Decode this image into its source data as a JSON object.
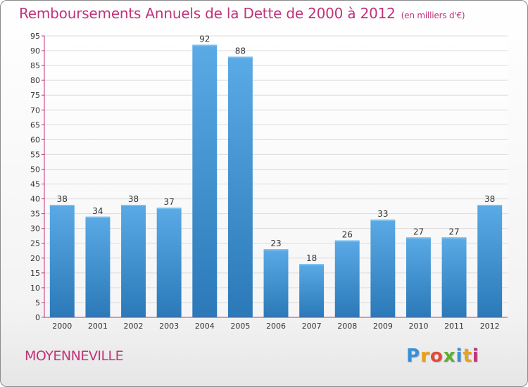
{
  "header": {
    "title": "Remboursements Annuels de la Dette de 2000 à 2012",
    "subtitle": "(en milliers d'€)"
  },
  "footer": {
    "city": "MOYENNEVILLE",
    "logo_text": "Proxiti"
  },
  "colors": {
    "title": "#c0337a",
    "bar_top": "#5aaae6",
    "bar_bottom": "#2b79b8",
    "axis": "#c0337a"
  },
  "chart_data": {
    "type": "bar",
    "title": "Remboursements Annuels de la Dette de 2000 à 2012",
    "subtitle": "(en milliers d'€)",
    "categories": [
      "2000",
      "2001",
      "2002",
      "2003",
      "2004",
      "2005",
      "2006",
      "2007",
      "2008",
      "2009",
      "2010",
      "2011",
      "2012"
    ],
    "values": [
      38,
      34,
      38,
      37,
      92,
      88,
      23,
      18,
      26,
      33,
      27,
      27,
      38
    ],
    "ylim": [
      0,
      95
    ],
    "yticks": [
      0,
      5,
      10,
      15,
      20,
      25,
      30,
      35,
      40,
      45,
      50,
      55,
      60,
      65,
      70,
      75,
      80,
      85,
      90,
      95
    ],
    "grid": true,
    "legend": "none"
  }
}
